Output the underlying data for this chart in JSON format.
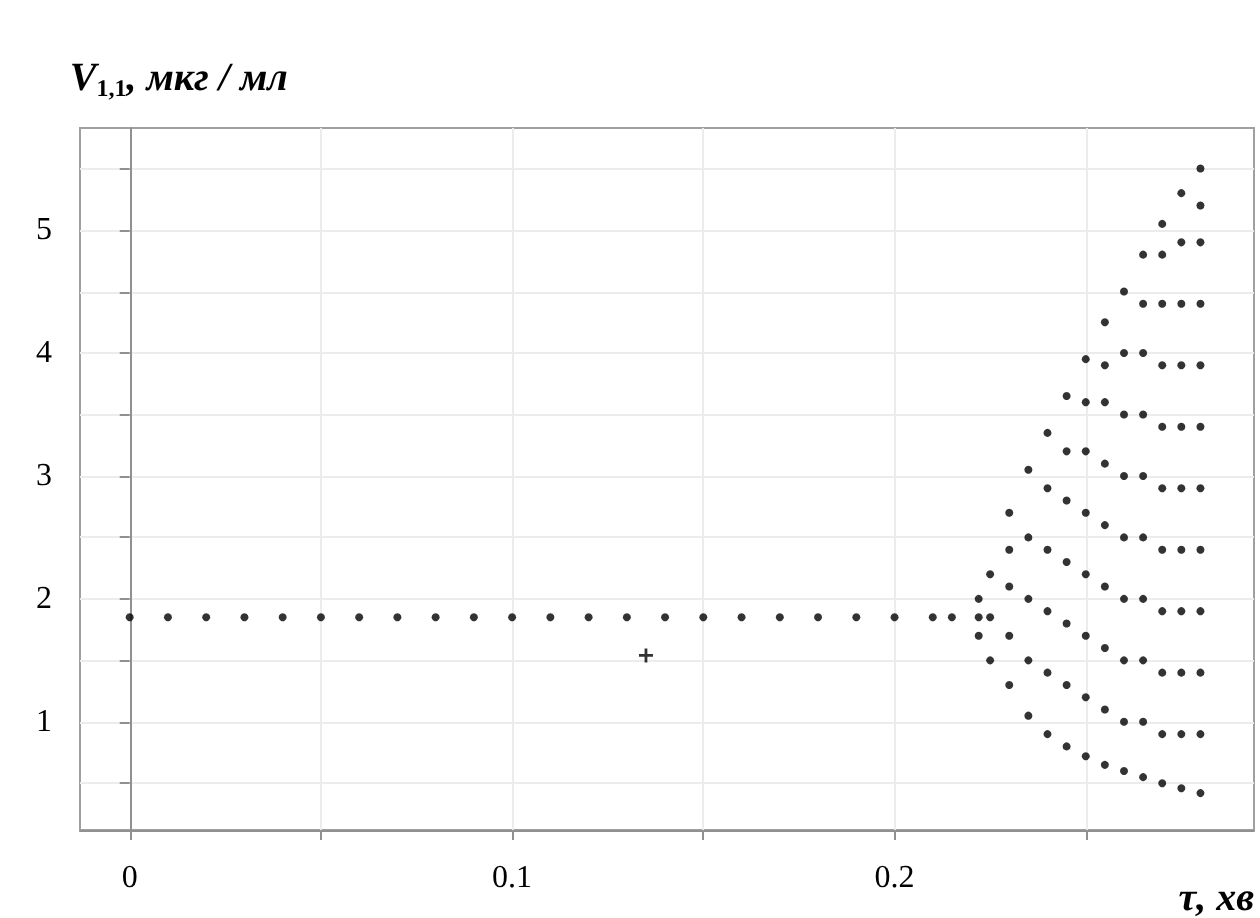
{
  "chart_data": {
    "type": "scatter",
    "xlabel": "τ, хв",
    "ylabel": "V$_{1,1}$, мкг / мл",
    "xlim": [
      -0.013,
      0.294
    ],
    "ylim": [
      0.12,
      5.83
    ],
    "xticks": [
      0,
      {
        "value": 0.05,
        "label": null
      },
      0.1,
      {
        "value": 0.15,
        "label": null
      },
      0.2,
      {
        "value": 0.25,
        "label": null
      }
    ],
    "yticks": [
      {
        "value": 0.5,
        "label": null
      },
      1,
      {
        "value": 1.5,
        "label": null
      },
      2,
      {
        "value": 2.5,
        "label": null
      },
      3,
      {
        "value": 3.5,
        "label": null
      },
      4,
      {
        "value": 4.5,
        "label": null
      },
      5,
      {
        "value": 5.5,
        "label": null
      }
    ],
    "grid": true,
    "series": [
      {
        "color": "#000000",
        "marker": "circle",
        "x": [
          0,
          0.01,
          0.02,
          0.03,
          0.04,
          0.05,
          0.06,
          0.07,
          0.08,
          0.09,
          0.1,
          0.11,
          0.12,
          0.13,
          0.14,
          0.15,
          0.16,
          0.17,
          0.18,
          0.19,
          0.2,
          0.21,
          0.215,
          0.222,
          0.222,
          0.222,
          0.225,
          0.225,
          0.225,
          0.23,
          0.23,
          0.23,
          0.23,
          0.23,
          0.235,
          0.235,
          0.235,
          0.235,
          0.235,
          0.24,
          0.24,
          0.24,
          0.24,
          0.24,
          0.24,
          0.245,
          0.245,
          0.245,
          0.245,
          0.245,
          0.245,
          0.245,
          0.25,
          0.25,
          0.25,
          0.25,
          0.25,
          0.25,
          0.25,
          0.25,
          0.255,
          0.255,
          0.255,
          0.255,
          0.255,
          0.255,
          0.255,
          0.255,
          0.255,
          0.26,
          0.26,
          0.26,
          0.26,
          0.26,
          0.26,
          0.26,
          0.26,
          0.26,
          0.265,
          0.265,
          0.265,
          0.265,
          0.265,
          0.265,
          0.265,
          0.265,
          0.265,
          0.265,
          0.27,
          0.27,
          0.27,
          0.27,
          0.27,
          0.27,
          0.27,
          0.27,
          0.27,
          0.27,
          0.27,
          0.275,
          0.275,
          0.275,
          0.275,
          0.275,
          0.275,
          0.275,
          0.275,
          0.275,
          0.275,
          0.275,
          0.28,
          0.28,
          0.28,
          0.28,
          0.28,
          0.28,
          0.28,
          0.28,
          0.28,
          0.28,
          0.28,
          0.28
        ],
        "values": [
          1.85,
          1.85,
          1.85,
          1.85,
          1.85,
          1.85,
          1.85,
          1.85,
          1.85,
          1.85,
          1.85,
          1.85,
          1.85,
          1.85,
          1.85,
          1.85,
          1.85,
          1.85,
          1.85,
          1.85,
          1.85,
          1.85,
          1.85,
          1.7,
          1.85,
          2.0,
          1.5,
          1.85,
          2.2,
          1.3,
          1.7,
          2.1,
          2.4,
          2.7,
          1.05,
          1.5,
          2.0,
          2.5,
          3.05,
          0.9,
          1.4,
          1.9,
          2.4,
          2.9,
          3.35,
          0.8,
          1.3,
          1.8,
          2.3,
          2.8,
          3.2,
          3.65,
          0.72,
          1.2,
          1.7,
          2.2,
          2.7,
          3.2,
          3.6,
          3.95,
          0.65,
          1.1,
          1.6,
          2.1,
          2.6,
          3.1,
          3.6,
          3.9,
          4.25,
          0.6,
          1.0,
          1.5,
          2.0,
          2.5,
          3.0,
          3.5,
          4.0,
          4.5,
          0.55,
          1.0,
          1.5,
          2.0,
          2.5,
          3.0,
          3.5,
          4.0,
          4.4,
          4.8,
          0.5,
          0.9,
          1.4,
          1.9,
          2.4,
          2.9,
          3.4,
          3.9,
          4.4,
          4.8,
          5.05,
          0.46,
          0.9,
          1.4,
          1.9,
          2.4,
          2.9,
          3.4,
          3.9,
          4.4,
          4.9,
          5.3,
          0.42,
          0.9,
          1.4,
          1.9,
          2.4,
          2.9,
          3.4,
          3.9,
          4.4,
          4.9,
          5.2,
          5.5
        ]
      },
      {
        "color": "#000000",
        "marker": "cross",
        "x": [
          0.135
        ],
        "values": [
          1.54
        ]
      }
    ]
  }
}
